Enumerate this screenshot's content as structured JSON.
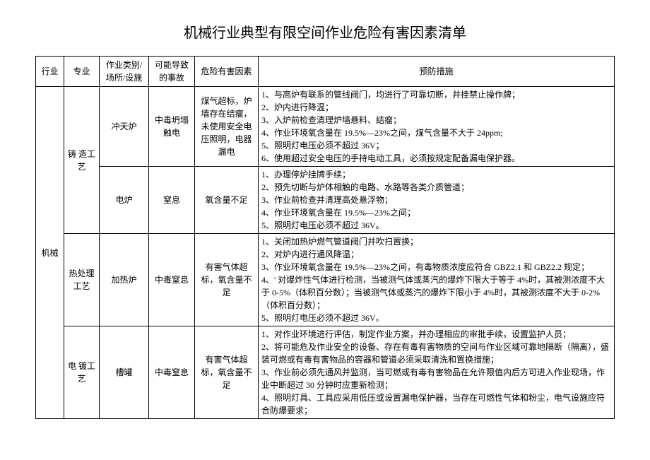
{
  "title": "机械行业典型有限空间作业危险有害因素清单",
  "headers": {
    "industry": "行业",
    "major": "专业",
    "place": "作业类别/场所/设施",
    "accident": "可能导致的事故",
    "hazard": "危险有害因素",
    "measure": "预防措施"
  },
  "industry": "机械",
  "majors": {
    "casting": "铸 造工艺",
    "heat": "热处理工艺",
    "plating": "电 镀工艺"
  },
  "rows": {
    "r1": {
      "place": "冲天炉",
      "accident": "中毒坍塌触电",
      "hazard": "煤气超标，炉墙存在结瘤，未使用安全电压照明，电器漏电",
      "m1": "1、与高炉有联系的管线阀门，均进行了可靠切断，并挂禁止操作牌；",
      "m2": "2、炉内进行降温；",
      "m3": "3、入炉前检查清理炉墙悬料、结瘤；",
      "m4": "4、作业环境氧含量在 19.5%—23%之间，煤气含量不大于 24ppm;",
      "m5": "5、照明灯电压必须不超过 36V；",
      "m6": "6、使用超过安全电压的手持电动工具，必须按规定配备漏电保护器。"
    },
    "r2": {
      "place": "电炉",
      "accident": "窒息",
      "hazard": "氧含量不足",
      "m1": "1、办理停炉挂牌手续；",
      "m2": "2、预先切断与炉体相触的电路、水路等各类介质管道；",
      "m3": "3、作业前检查并清理高处悬浮物；",
      "m4": "4、作业环境氧含量在 19.5%—23%之间；",
      "m5": "5、照明灯电压必须不超过 36V。"
    },
    "r3": {
      "place": "加热炉",
      "accident": "中毒窒息",
      "hazard": "有害气体超标，氧含量不足",
      "m1": "1、关闭加热炉燃气管道阀门并吹扫置换；",
      "m2": "2、对炉内进行通风降温；",
      "m3": "3、作业环境氧含量在 19.5%—23%之间，有毒物质浓度应符合 GBZ2.1 和 GBZ2.2 规定；",
      "m4": "4、' 对爆炸性气体进行检测，当被测气体或蒸汽的爆炸下限大于等于 4%时，其被测浓度不大于 0-5%（体积百分数）；当被测气体或蒸汽的爆炸下限小于 4%时，其被测浓度不大于 0-2%（体积百分数）；",
      "m5": "5、照明灯电压必须不超过 36V。"
    },
    "r4": {
      "place": "槽罐",
      "accident": "中毒窒息",
      "hazard": "有害气体超标，氧含量不足",
      "m1": "1、对作业环境进行评估，制定作业方案，并办理相应的审批手续，设置监护人员；",
      "m2": "2、将可能危及作业安全的设备、存在有毒有害物质的空间与作业区域可靠地隔断（隔离），盛装可燃或有毒有害物品的容器和管道必须采取清洗和置换措施；",
      "m3": "3、作业前必须先通风并监测，当可燃或有毒有害物品在允许限值内后方可进入作业现场，作业中断超过 30 分钟时应重新检测；",
      "m4": "4、照明灯具、工具应采用低压或设置漏电保护器，当存在可燃性气体和粉尘，电气设施应符合防爆要求；"
    }
  }
}
